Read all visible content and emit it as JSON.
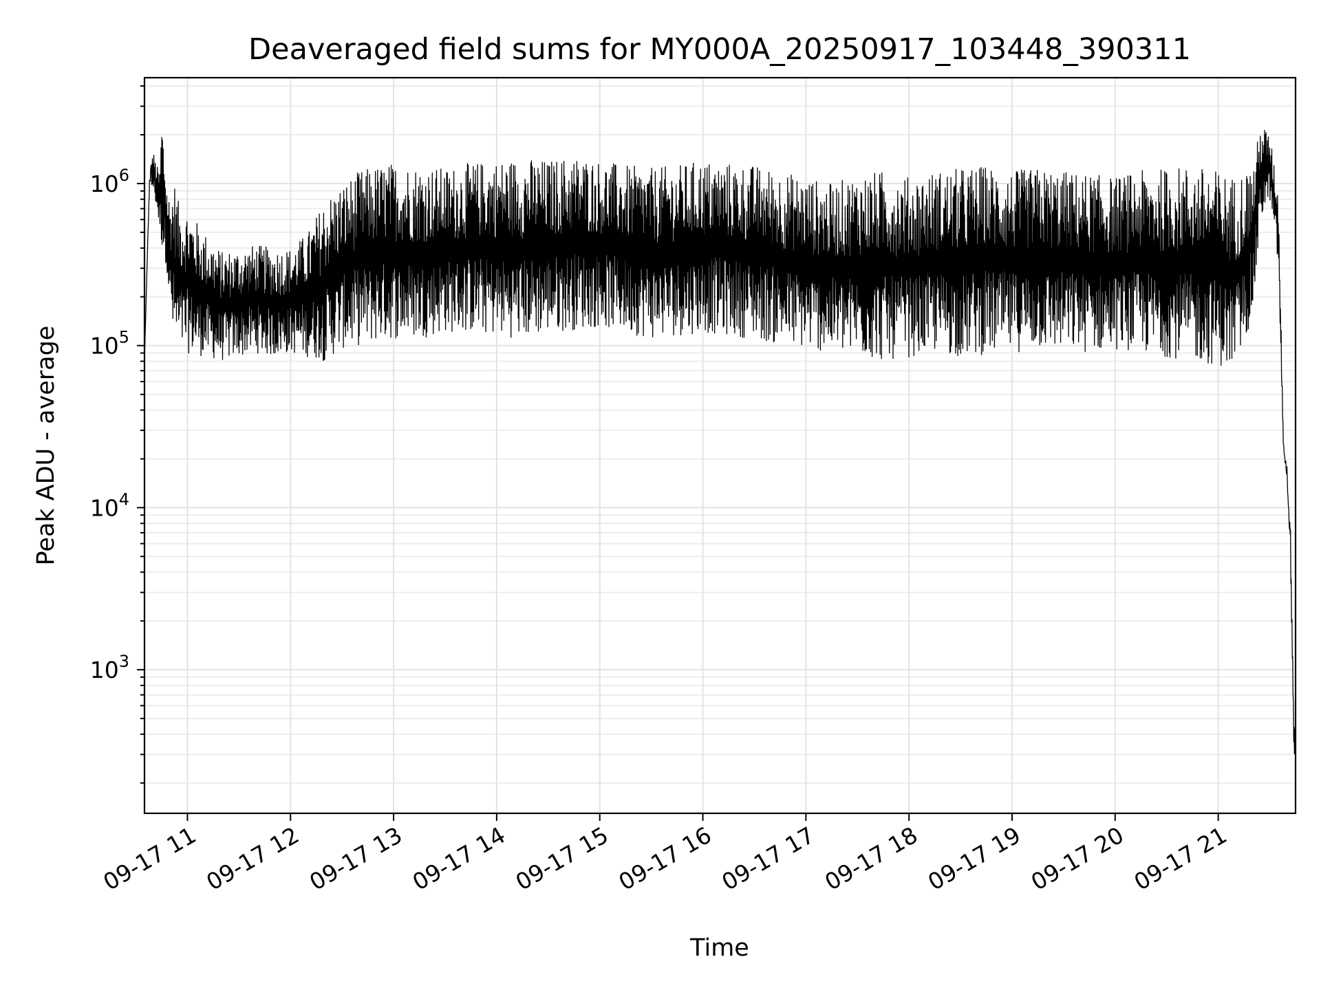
{
  "chart_data": {
    "type": "line",
    "title": "Deaveraged field sums for MY000A_20250917_103448_390311",
    "xlabel": "Time",
    "ylabel": "Peak ADU - average",
    "x_axis": "time",
    "xlim": [
      "09-17 10:35",
      "09-17 21:45"
    ],
    "x_ticks": [
      "09-17 11",
      "09-17 12",
      "09-17 13",
      "09-17 14",
      "09-17 15",
      "09-17 16",
      "09-17 17",
      "09-17 18",
      "09-17 19",
      "09-17 20",
      "09-17 21"
    ],
    "y_scale": "log",
    "ylim": [
      130,
      4500000
    ],
    "y_ticks": [
      {
        "base": "10",
        "exp": "3",
        "value": 1000
      },
      {
        "base": "10",
        "exp": "4",
        "value": 10000
      },
      {
        "base": "10",
        "exp": "5",
        "value": 100000
      },
      {
        "base": "10",
        "exp": "6",
        "value": 1000000
      }
    ],
    "grid": true,
    "line_color": "#000000",
    "series": [
      {
        "x": [
          "09-17 10:35",
          "09-17 10:36",
          "09-17 10:38",
          "09-17 10:40",
          "09-17 10:42",
          "09-17 10:44",
          "09-17 10:45",
          "09-17 10:48",
          "09-17 10:50",
          "09-17 10:52",
          "09-17 10:55",
          "09-17 11:00",
          "09-17 11:10",
          "09-17 11:20",
          "09-17 11:30",
          "09-17 11:40",
          "09-17 11:50",
          "09-17 12:00",
          "09-17 12:10",
          "09-17 12:20",
          "09-17 12:30",
          "09-17 12:40",
          "09-17 12:50",
          "09-17 13:00",
          "09-17 13:15",
          "09-17 13:30",
          "09-17 13:45",
          "09-17 14:00",
          "09-17 14:15",
          "09-17 14:30",
          "09-17 14:45",
          "09-17 15:00",
          "09-17 15:15",
          "09-17 15:30",
          "09-17 15:45",
          "09-17 16:00",
          "09-17 16:15",
          "09-17 16:30",
          "09-17 16:45",
          "09-17 17:00",
          "09-17 17:15",
          "09-17 17:30",
          "09-17 17:45",
          "09-17 18:00",
          "09-17 18:15",
          "09-17 18:30",
          "09-17 18:45",
          "09-17 19:00",
          "09-17 19:15",
          "09-17 19:30",
          "09-17 19:45",
          "09-17 20:00",
          "09-17 20:15",
          "09-17 20:30",
          "09-17 20:45",
          "09-17 21:00",
          "09-17 21:10",
          "09-17 21:20",
          "09-17 21:25",
          "09-17 21:30",
          "09-17 21:35",
          "09-17 21:38",
          "09-17 21:40",
          "09-17 21:42",
          "09-17 21:44"
        ],
        "hi": [
          80000,
          200000,
          1200000,
          1600000,
          1300000,
          1200000,
          2800000,
          1000000,
          800000,
          1100000,
          750000,
          700000,
          500000,
          380000,
          400000,
          420000,
          400000,
          400000,
          500000,
          800000,
          1000000,
          1200000,
          1300000,
          1350000,
          1300000,
          1250000,
          1350000,
          1400000,
          1450000,
          1400000,
          1500000,
          1400000,
          1300000,
          1250000,
          1300000,
          1400000,
          1350000,
          1300000,
          1200000,
          1100000,
          1000000,
          1150000,
          1200000,
          1100000,
          1200000,
          1250000,
          1300000,
          1200000,
          1250000,
          1200000,
          1150000,
          1100000,
          1200000,
          1250000,
          1300000,
          1200000,
          1100000,
          1300000,
          2400000,
          2000000,
          900000,
          25000,
          18000,
          9000,
          500
        ],
        "lo": [
          80000,
          200000,
          1000000,
          900000,
          700000,
          500000,
          400000,
          300000,
          150000,
          100000,
          90000,
          90000,
          85000,
          80000,
          85000,
          90000,
          85000,
          90000,
          85000,
          80000,
          95000,
          100000,
          105000,
          110000,
          110000,
          120000,
          120000,
          115000,
          110000,
          120000,
          125000,
          130000,
          120000,
          110000,
          115000,
          120000,
          115000,
          110000,
          100000,
          95000,
          90000,
          85000,
          80000,
          85000,
          90000,
          85000,
          88000,
          90000,
          95000,
          92000,
          90000,
          95000,
          90000,
          85000,
          80000,
          75000,
          70000,
          150000,
          600000,
          800000,
          300000,
          22000,
          15000,
          5000,
          300
        ]
      }
    ]
  }
}
